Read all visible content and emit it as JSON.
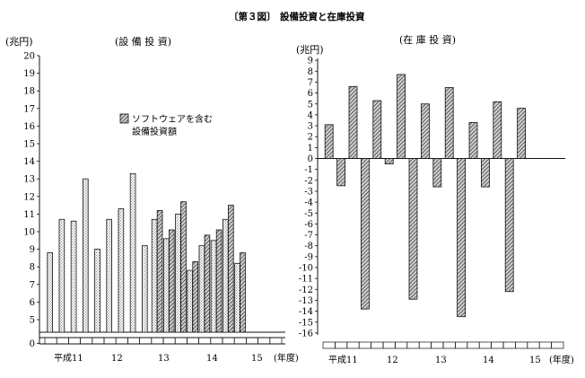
{
  "figure": {
    "number_label": "〔第３図〕",
    "title": "設備投資と在庫投資"
  },
  "colors": {
    "ink": "#111111",
    "paper": "#ffffff"
  },
  "chart_data": [
    {
      "type": "bar",
      "title": "(設 備 投 資)",
      "ylabel": "(兆円)",
      "xlabel": "",
      "ylim": [
        0,
        20
      ],
      "y_ticks": [
        0,
        5,
        6,
        7,
        8,
        9,
        10,
        11,
        12,
        13,
        14,
        15,
        16,
        17,
        18,
        19,
        20
      ],
      "axis_break": [
        0.4,
        4.4
      ],
      "year_labels": [
        "平成11",
        "12",
        "13",
        "14",
        "15",
        "(年度)"
      ],
      "quarters_per_year": 4,
      "series": [
        {
          "name": "",
          "pattern": "dots",
          "values": [
            8.8,
            10.7,
            10.6,
            13.0,
            9.0,
            10.7,
            11.3,
            13.3,
            9.2,
            10.7,
            9.6,
            11.0,
            7.8,
            9.2,
            9.5,
            10.7,
            8.2
          ]
        },
        {
          "name": "ソフトウェアを含む設備投資額",
          "pattern": "hatch",
          "values": [
            null,
            null,
            null,
            null,
            null,
            null,
            null,
            null,
            null,
            11.2,
            10.1,
            11.7,
            8.3,
            9.8,
            10.1,
            11.5,
            8.8
          ]
        }
      ],
      "legend": {
        "lines": [
          "ソフトウェアを含む",
          "設備投資額"
        ],
        "position": "upper-middle"
      }
    },
    {
      "type": "bar",
      "title": "(在 庫 投 資)",
      "ylabel": "(兆円)",
      "xlabel": "",
      "ylim": [
        -16,
        9
      ],
      "y_ticks": [
        9,
        8,
        7,
        6,
        5,
        4,
        3,
        2,
        1,
        0,
        -1,
        -2,
        -3,
        -4,
        -5,
        -6,
        -7,
        -8,
        -9,
        -10,
        -11,
        -12,
        -13,
        -14,
        -15,
        -16
      ],
      "year_labels": [
        "平成11",
        "12",
        "13",
        "14",
        "15",
        "(年度)"
      ],
      "quarters_per_year": 4,
      "series": [
        {
          "name": "",
          "pattern": "hatch",
          "values": [
            3.1,
            -2.5,
            6.6,
            -13.8,
            5.3,
            -0.5,
            7.7,
            -12.9,
            5.0,
            -2.6,
            6.5,
            -14.5,
            3.3,
            -2.6,
            5.2,
            -12.2,
            4.6
          ]
        }
      ]
    }
  ]
}
